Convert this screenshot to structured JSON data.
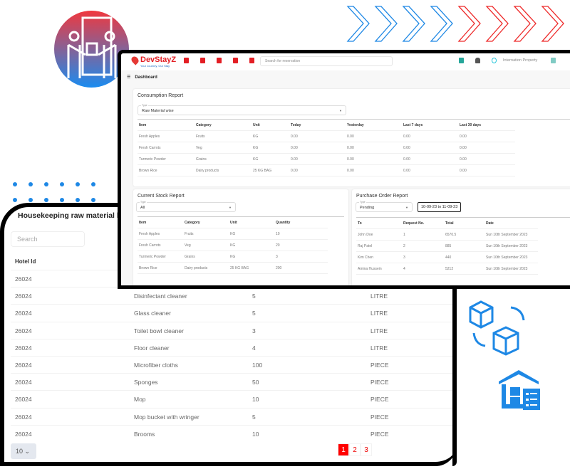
{
  "colors": {
    "accent": "#e31e24",
    "blue": "#1e88e5",
    "black_frame": "#000000"
  },
  "decor": {
    "circle_icon": "people-handing-box-icon",
    "boxes_icon": "boxes-exchange-icon",
    "warehouse_icon": "warehouse-inventory-icon",
    "chevrons": {
      "blue_count": 4,
      "red_count": 4
    }
  },
  "housekeeping": {
    "title": "Housekeeping raw material list",
    "search_placeholder": "Search",
    "header_hotel_id": "Hotel Id",
    "rows": [
      {
        "hotel_id": "26024",
        "name": "",
        "qty": "",
        "unit": ""
      },
      {
        "hotel_id": "26024",
        "name": "Disinfectant cleaner",
        "qty": "5",
        "unit": "LITRE"
      },
      {
        "hotel_id": "26024",
        "name": "Glass cleaner",
        "qty": "5",
        "unit": "LITRE"
      },
      {
        "hotel_id": "26024",
        "name": "Toilet bowl cleaner",
        "qty": "3",
        "unit": "LITRE"
      },
      {
        "hotel_id": "26024",
        "name": "Floor cleaner",
        "qty": "4",
        "unit": "LITRE"
      },
      {
        "hotel_id": "26024",
        "name": "Microfiber cloths",
        "qty": "100",
        "unit": "PIECE"
      },
      {
        "hotel_id": "26024",
        "name": "Sponges",
        "qty": "50",
        "unit": "PIECE"
      },
      {
        "hotel_id": "26024",
        "name": "Mop",
        "qty": "10",
        "unit": "PIECE"
      },
      {
        "hotel_id": "26024",
        "name": "Mop bucket with wringer",
        "qty": "5",
        "unit": "PIECE"
      },
      {
        "hotel_id": "26024",
        "name": "Brooms",
        "qty": "10",
        "unit": "PIECE"
      }
    ],
    "per_page": "10",
    "pages": [
      "1",
      "2",
      "3"
    ],
    "current_page": "1"
  },
  "dashboard": {
    "logo": "DevStayZ",
    "tagline": "Your Journey, Our Stay",
    "search_placeholder": "Search for reservation",
    "property": "Internation Property",
    "breadcrumb": "Dashboard",
    "consumption": {
      "title": "Consumption Report",
      "type_label": "Type",
      "type_value": "Raw Material wise",
      "headers": [
        "Item",
        "Category",
        "Unit",
        "Today",
        "Yesterday",
        "Last 7 days",
        "Last 30 days"
      ],
      "rows": [
        [
          "Fresh Apples",
          "Fruits",
          "KG",
          "0.00",
          "0.00",
          "0.00",
          "0.00"
        ],
        [
          "Fresh Carrots",
          "Veg",
          "KG",
          "0.00",
          "0.00",
          "0.00",
          "0.00"
        ],
        [
          "Turmeric Powder",
          "Grains",
          "KG",
          "0.00",
          "0.00",
          "0.00",
          "0.00"
        ],
        [
          "Brown Rice",
          "Dairy products",
          "25 KG BAG",
          "0.00",
          "0.00",
          "0.00",
          "0.00"
        ]
      ]
    },
    "stock": {
      "title": "Current Stock Report",
      "type_label": "Type",
      "type_value": "All",
      "headers": [
        "Item",
        "Category",
        "Unit",
        "Quantity"
      ],
      "rows": [
        [
          "Fresh Apples",
          "Fruits",
          "KG",
          "10"
        ],
        [
          "Fresh Carrots",
          "Veg",
          "KG",
          "20"
        ],
        [
          "Turmeric Powder",
          "Grains",
          "KG",
          "3"
        ],
        [
          "Brown Rice",
          "Dairy products",
          "25 KG BAG",
          "200"
        ]
      ]
    },
    "purchase": {
      "title": "Purchase Order Report",
      "type_label": "Type",
      "type_value": "Pending",
      "date_range": "10-09-23 to 11-09-23",
      "headers": [
        "To",
        "Request No.",
        "Total",
        "Date"
      ],
      "rows": [
        [
          "John Doe",
          "1",
          "6570.5",
          "Sun 10th September 2023"
        ],
        [
          "Raj Patel",
          "2",
          "885",
          "Sun 10th September 2023"
        ],
        [
          "Kim Chen",
          "3",
          "440",
          "Sun 10th September 2023"
        ],
        [
          "Amina Hussein",
          "4",
          "5212",
          "Sun 10th September 2023"
        ]
      ]
    }
  }
}
